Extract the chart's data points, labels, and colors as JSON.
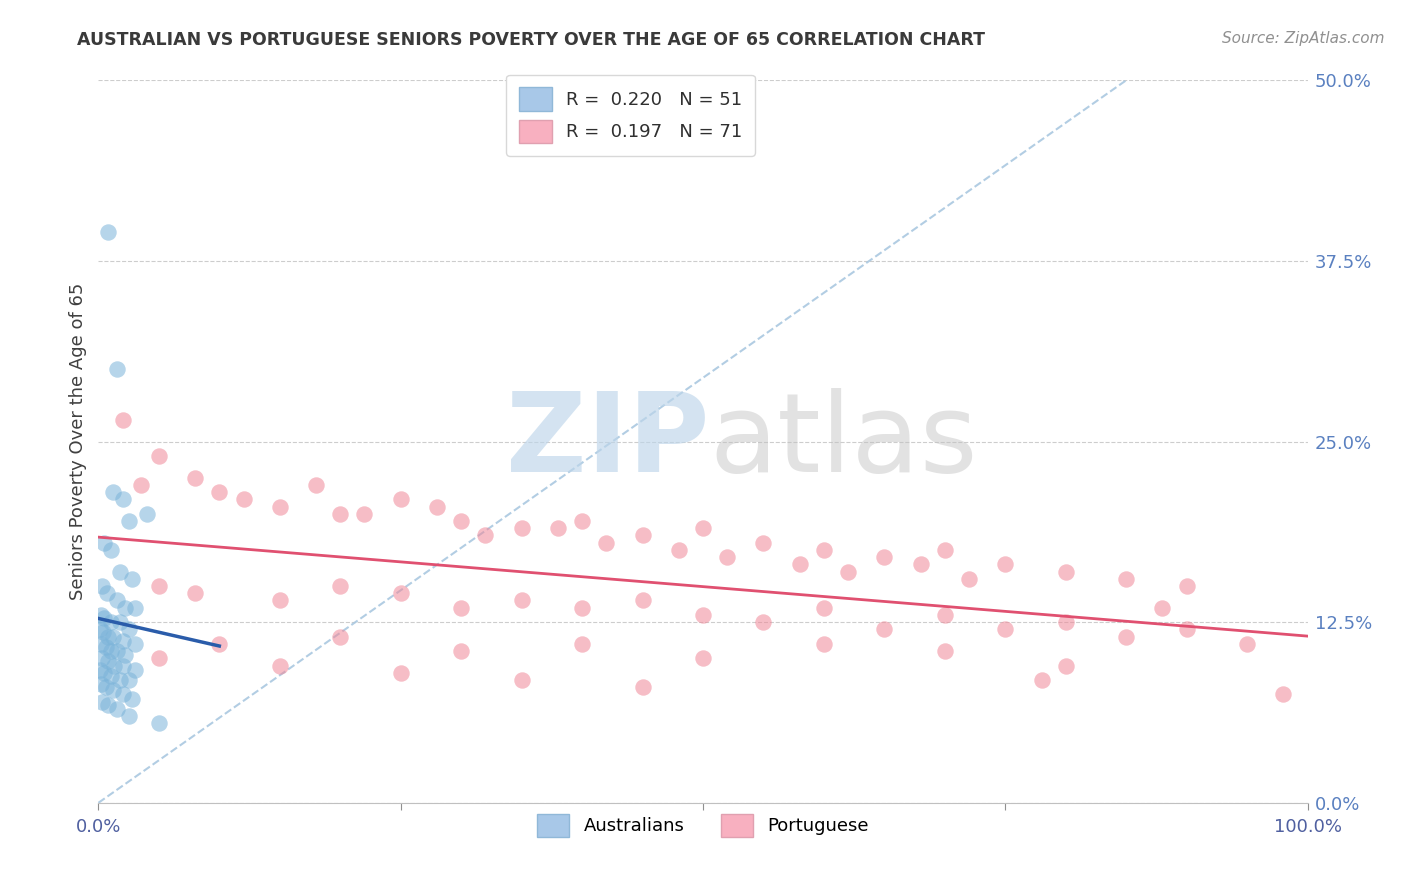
{
  "title": "AUSTRALIAN VS PORTUGUESE SENIORS POVERTY OVER THE AGE OF 65 CORRELATION CHART",
  "source": "Source: ZipAtlas.com",
  "ylabel": "Seniors Poverty Over the Age of 65",
  "xlim": [
    0,
    100
  ],
  "ylim": [
    0,
    50
  ],
  "ytick_labels": [
    "0.0%",
    "12.5%",
    "25.0%",
    "37.5%",
    "50.0%"
  ],
  "ytick_values": [
    0,
    12.5,
    25.0,
    37.5,
    50.0
  ],
  "au_color": "#7ab3d9",
  "pt_color": "#f08898",
  "au_line_color": "#2a5caa",
  "pt_line_color": "#e05070",
  "au_legend_color": "#a8c8e8",
  "pt_legend_color": "#f8b0c0",
  "background_color": "#ffffff",
  "grid_color": "#c8c8c8",
  "title_color": "#3a3a3a",
  "watermark_zip_color": "#c0d8ec",
  "watermark_atlas_color": "#b8b8b8",
  "au_scatter": [
    [
      0.8,
      39.5
    ],
    [
      1.5,
      30.0
    ],
    [
      1.2,
      21.5
    ],
    [
      2.0,
      21.0
    ],
    [
      2.5,
      19.5
    ],
    [
      4.0,
      20.0
    ],
    [
      0.5,
      18.0
    ],
    [
      1.0,
      17.5
    ],
    [
      1.8,
      16.0
    ],
    [
      2.8,
      15.5
    ],
    [
      0.3,
      15.0
    ],
    [
      0.7,
      14.5
    ],
    [
      1.5,
      14.0
    ],
    [
      2.2,
      13.5
    ],
    [
      3.0,
      13.5
    ],
    [
      0.2,
      13.0
    ],
    [
      0.5,
      12.8
    ],
    [
      1.0,
      12.5
    ],
    [
      1.8,
      12.5
    ],
    [
      2.5,
      12.0
    ],
    [
      0.1,
      12.0
    ],
    [
      0.4,
      11.8
    ],
    [
      0.8,
      11.5
    ],
    [
      1.2,
      11.5
    ],
    [
      2.0,
      11.2
    ],
    [
      3.0,
      11.0
    ],
    [
      0.2,
      11.0
    ],
    [
      0.6,
      10.8
    ],
    [
      1.0,
      10.5
    ],
    [
      1.5,
      10.5
    ],
    [
      2.2,
      10.2
    ],
    [
      0.3,
      10.0
    ],
    [
      0.8,
      9.8
    ],
    [
      1.3,
      9.5
    ],
    [
      2.0,
      9.5
    ],
    [
      3.0,
      9.2
    ],
    [
      0.1,
      9.2
    ],
    [
      0.5,
      9.0
    ],
    [
      1.0,
      8.8
    ],
    [
      1.8,
      8.5
    ],
    [
      2.5,
      8.5
    ],
    [
      0.2,
      8.2
    ],
    [
      0.6,
      8.0
    ],
    [
      1.2,
      7.8
    ],
    [
      2.0,
      7.5
    ],
    [
      2.8,
      7.2
    ],
    [
      0.3,
      7.0
    ],
    [
      0.8,
      6.8
    ],
    [
      1.5,
      6.5
    ],
    [
      2.5,
      6.0
    ],
    [
      5.0,
      5.5
    ]
  ],
  "pt_scatter": [
    [
      2.0,
      26.5
    ],
    [
      5.0,
      24.0
    ],
    [
      8.0,
      22.5
    ],
    [
      3.5,
      22.0
    ],
    [
      15.0,
      20.5
    ],
    [
      10.0,
      21.5
    ],
    [
      20.0,
      20.0
    ],
    [
      25.0,
      21.0
    ],
    [
      30.0,
      19.5
    ],
    [
      18.0,
      22.0
    ],
    [
      35.0,
      19.0
    ],
    [
      28.0,
      20.5
    ],
    [
      40.0,
      19.5
    ],
    [
      45.0,
      18.5
    ],
    [
      22.0,
      20.0
    ],
    [
      12.0,
      21.0
    ],
    [
      50.0,
      19.0
    ],
    [
      32.0,
      18.5
    ],
    [
      55.0,
      18.0
    ],
    [
      38.0,
      19.0
    ],
    [
      60.0,
      17.5
    ],
    [
      42.0,
      18.0
    ],
    [
      65.0,
      17.0
    ],
    [
      48.0,
      17.5
    ],
    [
      70.0,
      17.5
    ],
    [
      52.0,
      17.0
    ],
    [
      75.0,
      16.5
    ],
    [
      58.0,
      16.5
    ],
    [
      80.0,
      16.0
    ],
    [
      62.0,
      16.0
    ],
    [
      85.0,
      15.5
    ],
    [
      68.0,
      16.5
    ],
    [
      90.0,
      15.0
    ],
    [
      72.0,
      15.5
    ],
    [
      5.0,
      15.0
    ],
    [
      8.0,
      14.5
    ],
    [
      15.0,
      14.0
    ],
    [
      20.0,
      15.0
    ],
    [
      25.0,
      14.5
    ],
    [
      30.0,
      13.5
    ],
    [
      35.0,
      14.0
    ],
    [
      40.0,
      13.5
    ],
    [
      45.0,
      14.0
    ],
    [
      50.0,
      13.0
    ],
    [
      55.0,
      12.5
    ],
    [
      60.0,
      13.5
    ],
    [
      65.0,
      12.0
    ],
    [
      70.0,
      13.0
    ],
    [
      75.0,
      12.0
    ],
    [
      80.0,
      12.5
    ],
    [
      85.0,
      11.5
    ],
    [
      90.0,
      12.0
    ],
    [
      95.0,
      11.0
    ],
    [
      10.0,
      11.0
    ],
    [
      20.0,
      11.5
    ],
    [
      30.0,
      10.5
    ],
    [
      40.0,
      11.0
    ],
    [
      50.0,
      10.0
    ],
    [
      60.0,
      11.0
    ],
    [
      70.0,
      10.5
    ],
    [
      80.0,
      9.5
    ],
    [
      88.0,
      13.5
    ],
    [
      78.0,
      8.5
    ],
    [
      5.0,
      10.0
    ],
    [
      15.0,
      9.5
    ],
    [
      25.0,
      9.0
    ],
    [
      35.0,
      8.5
    ],
    [
      45.0,
      8.0
    ],
    [
      98.0,
      7.5
    ]
  ]
}
